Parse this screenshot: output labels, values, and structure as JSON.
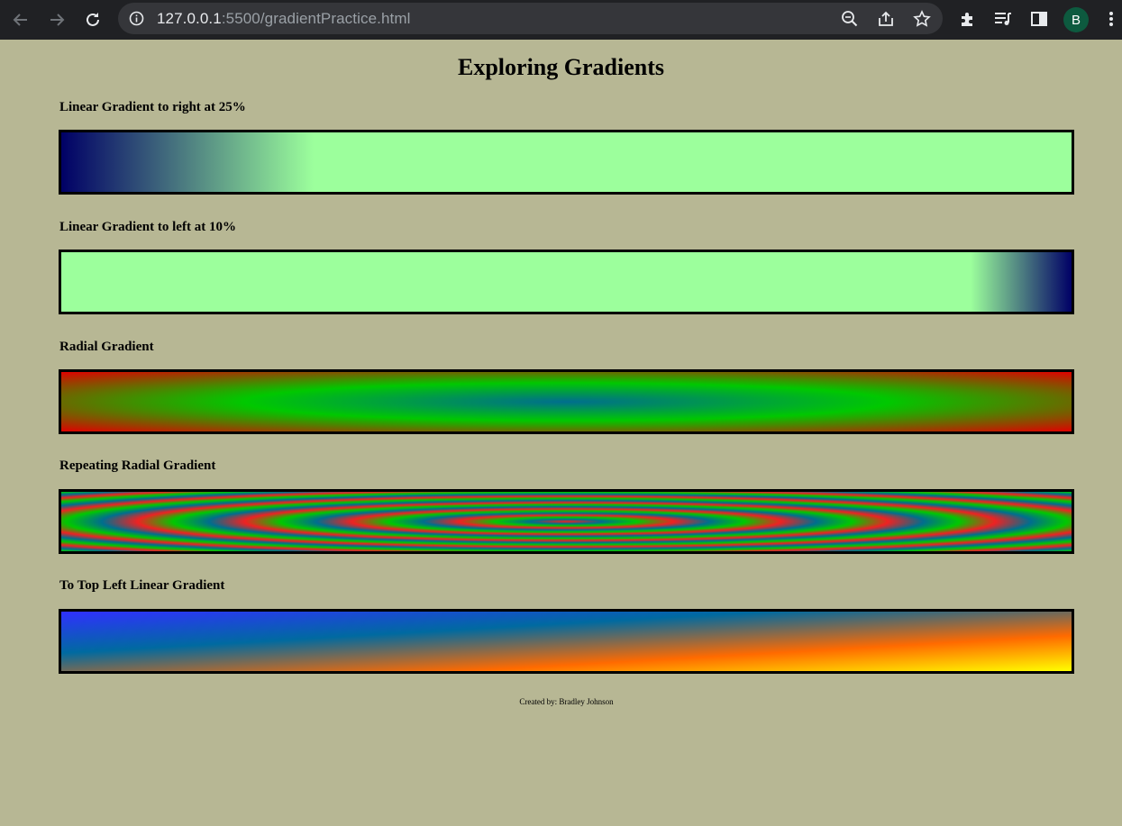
{
  "browser": {
    "url_host": "127.0.0.1",
    "url_rest": ":5500/gradientPractice.html",
    "profile_initial": "B",
    "icons": [
      "back-arrow-icon",
      "forward-arrow-icon",
      "reload-icon",
      "info-icon",
      "zoom-icon",
      "share-icon",
      "star-icon",
      "extensions-icon",
      "media-icon",
      "side-panel-icon",
      "menu-icon"
    ]
  },
  "page": {
    "title": "Exploring Gradients",
    "sections": [
      {
        "label": "Linear Gradient to right at 25%"
      },
      {
        "label": "Linear Gradient to left at 10%"
      },
      {
        "label": "Radial Gradient"
      },
      {
        "label": "Repeating Radial Gradient"
      },
      {
        "label": "To Top Left Linear Gradient"
      }
    ],
    "footer": "Created by: Bradley Johnson"
  },
  "colors": {
    "page_background": "#b7b794",
    "light_green": "#9cff9c",
    "navy": "#000066",
    "red": "#e00000",
    "green": "#00c800",
    "teal_blue": "#006e8e",
    "yellow": "#ffff00",
    "orange": "#ff6a00",
    "blue": "#3030ff"
  }
}
